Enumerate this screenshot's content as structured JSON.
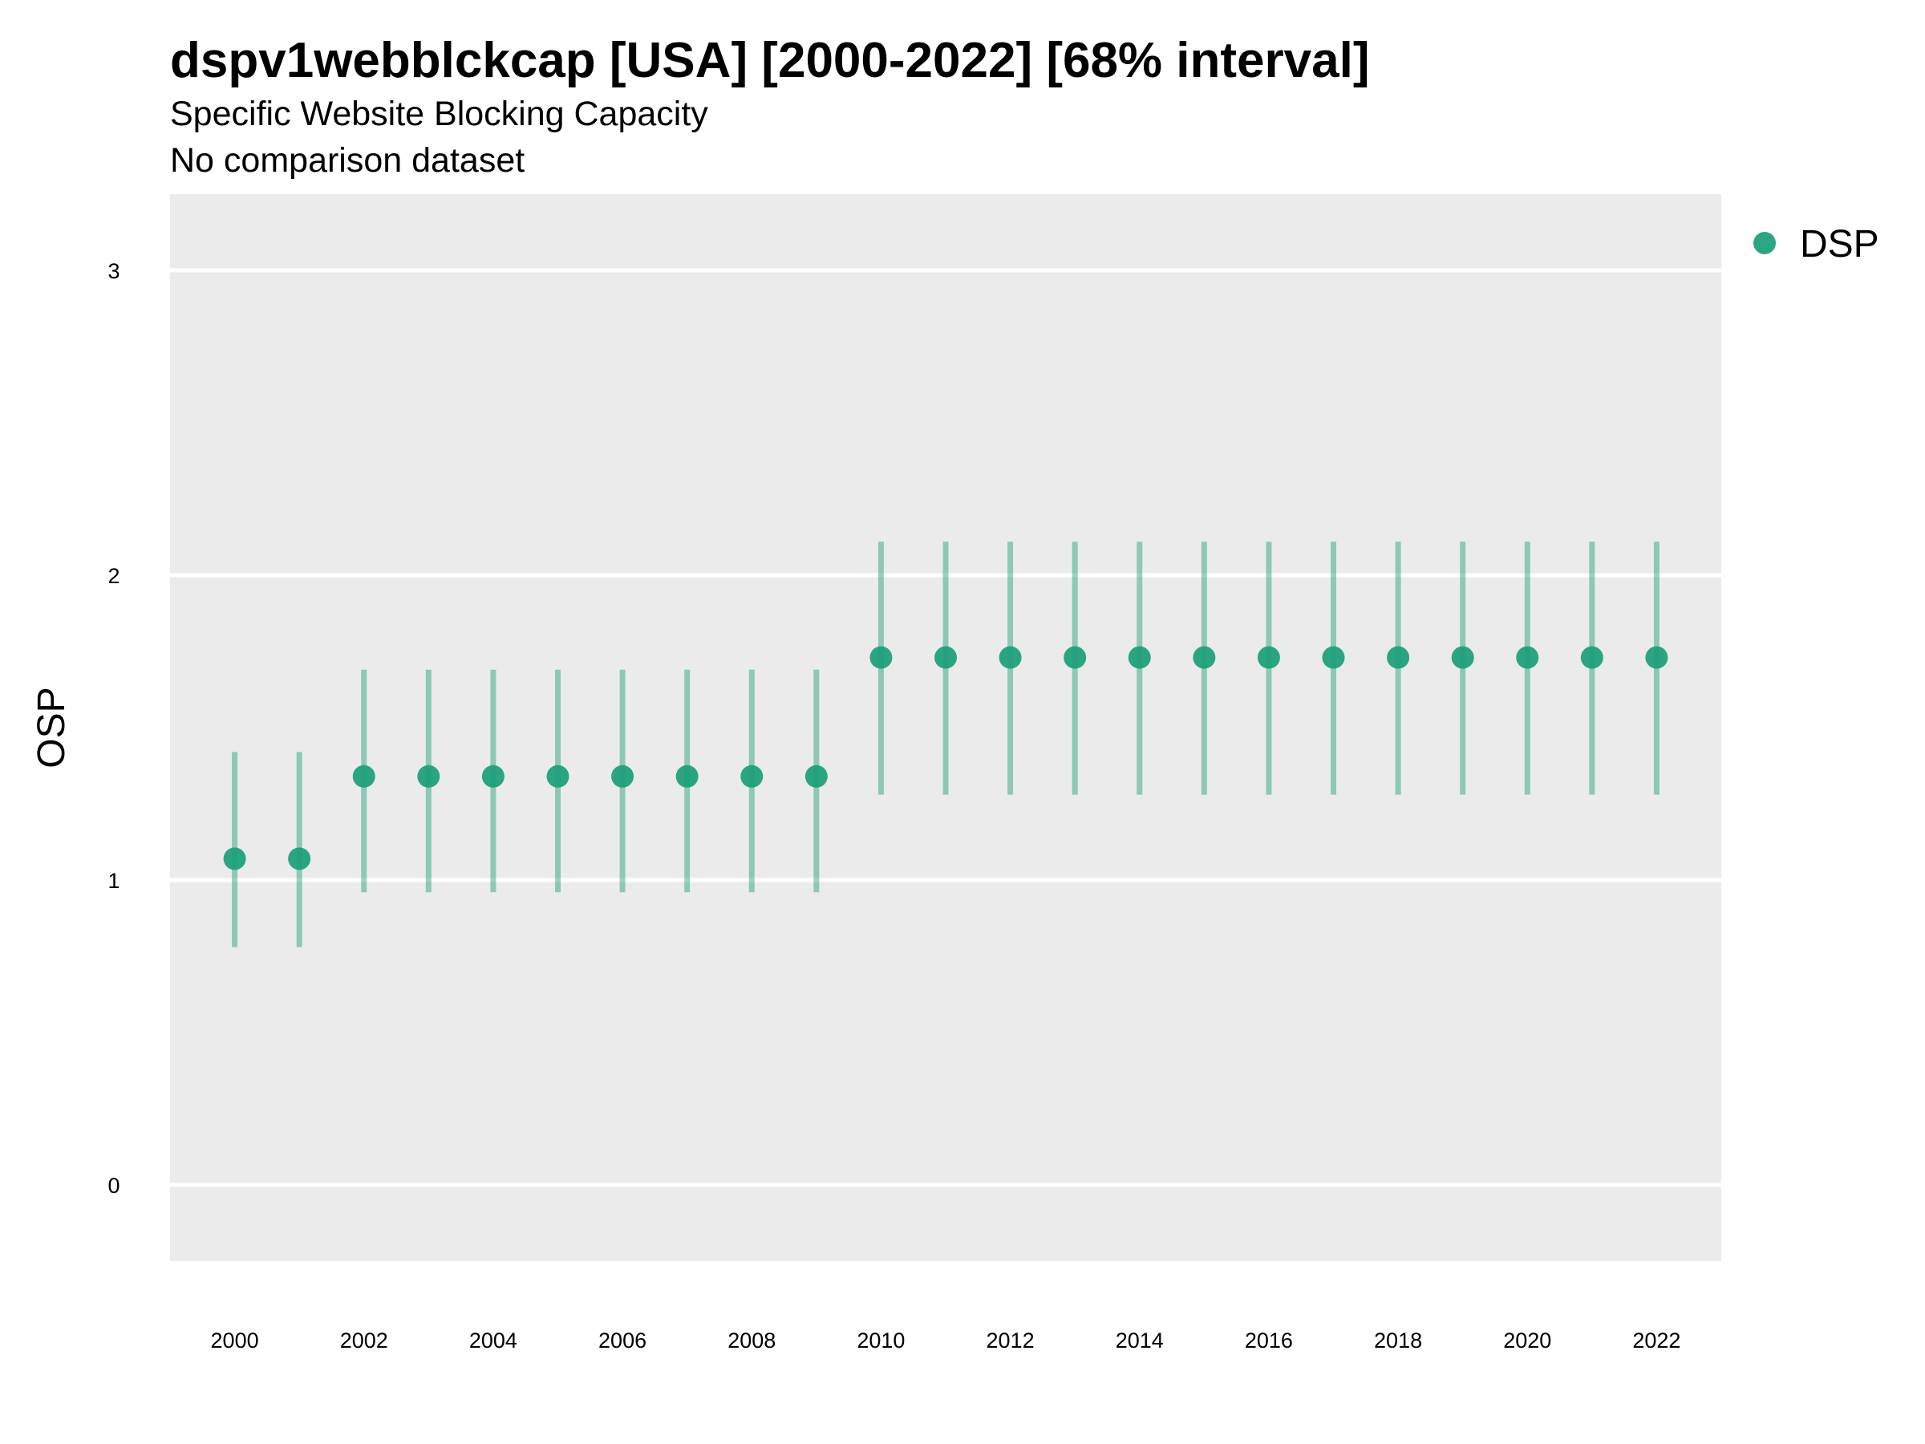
{
  "chart_data": {
    "type": "scatter",
    "title": "dspv1webblckcap [USA] [2000-2022] [68% interval]",
    "subtitle": "Specific Website Blocking Capacity",
    "caption": "No comparison dataset",
    "xlabel": "",
    "ylabel": "OSP",
    "xlim": [
      1999,
      2023
    ],
    "ylim": [
      -0.25,
      3.25
    ],
    "x_ticks": [
      2000,
      2002,
      2004,
      2006,
      2008,
      2010,
      2012,
      2014,
      2016,
      2018,
      2020,
      2022
    ],
    "y_ticks": [
      0,
      1,
      2,
      3
    ],
    "grid": true,
    "legend_position": "right",
    "series": [
      {
        "name": "DSP",
        "color": "#1a9e77",
        "x": [
          2000,
          2001,
          2002,
          2003,
          2004,
          2005,
          2006,
          2007,
          2008,
          2009,
          2010,
          2011,
          2012,
          2013,
          2014,
          2015,
          2016,
          2017,
          2018,
          2019,
          2020,
          2021,
          2022
        ],
        "y": [
          1.07,
          1.07,
          1.34,
          1.34,
          1.34,
          1.34,
          1.34,
          1.34,
          1.34,
          1.34,
          1.73,
          1.73,
          1.73,
          1.73,
          1.73,
          1.73,
          1.73,
          1.73,
          1.73,
          1.73,
          1.73,
          1.73,
          1.73
        ],
        "lower": [
          0.78,
          0.78,
          0.96,
          0.96,
          0.96,
          0.96,
          0.96,
          0.96,
          0.96,
          0.96,
          1.28,
          1.28,
          1.28,
          1.28,
          1.28,
          1.28,
          1.28,
          1.28,
          1.28,
          1.28,
          1.28,
          1.28,
          1.28
        ],
        "upper": [
          1.42,
          1.42,
          1.69,
          1.69,
          1.69,
          1.69,
          1.69,
          1.69,
          1.69,
          1.69,
          2.11,
          2.11,
          2.11,
          2.11,
          2.11,
          2.11,
          2.11,
          2.11,
          2.11,
          2.11,
          2.11,
          2.11,
          2.11
        ]
      }
    ]
  }
}
